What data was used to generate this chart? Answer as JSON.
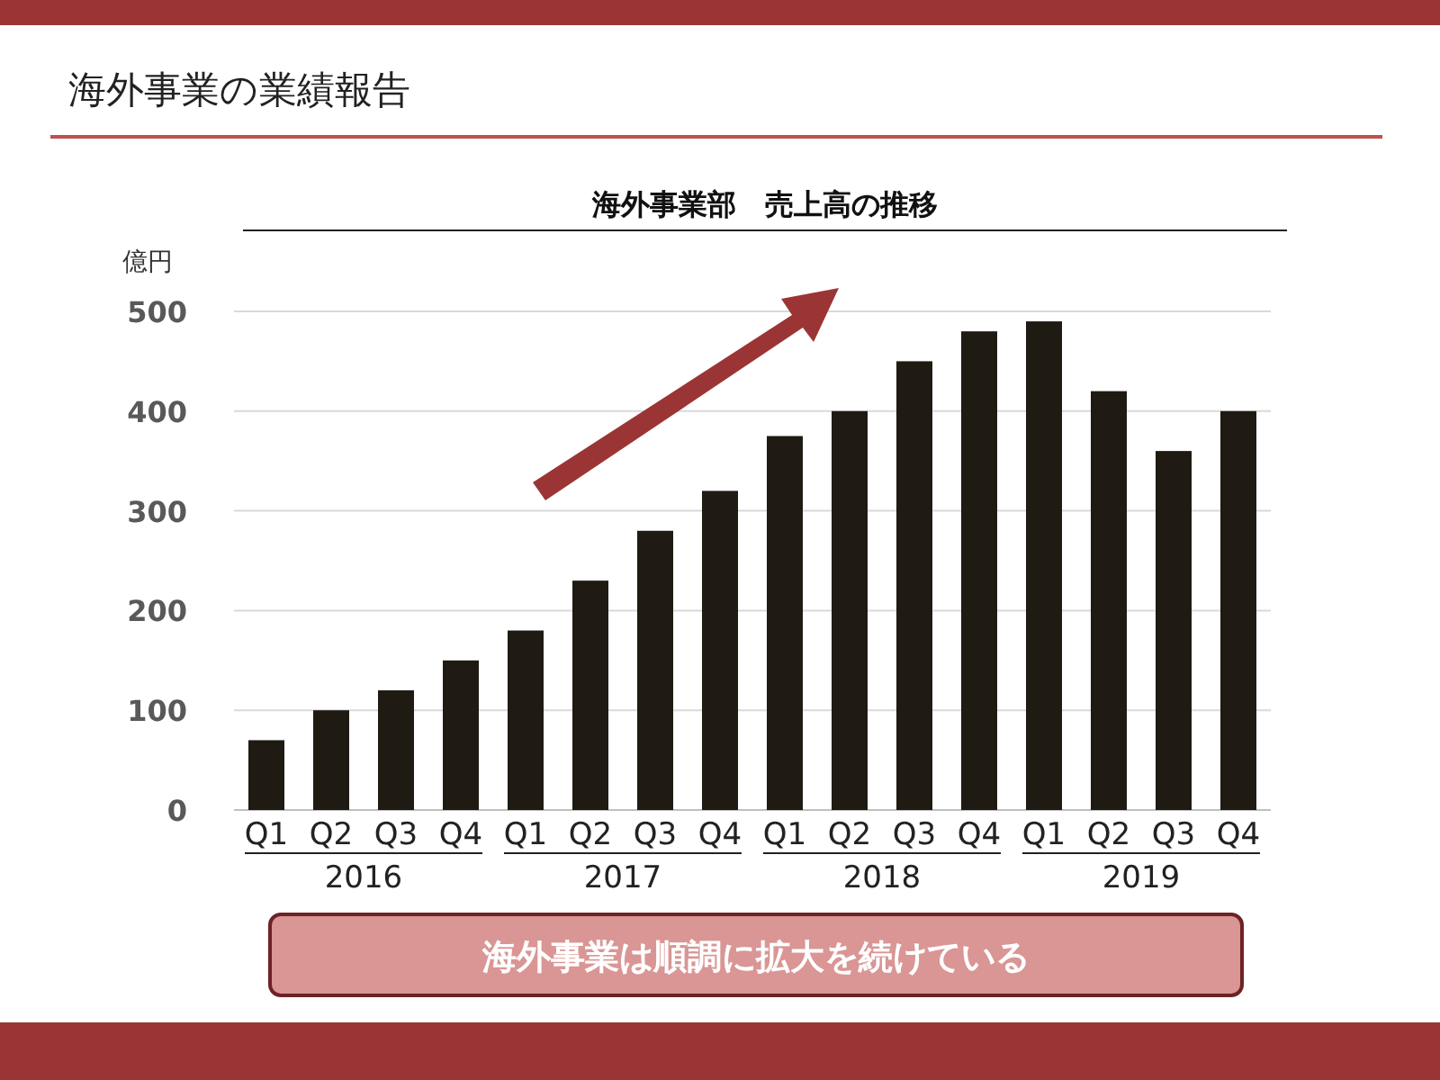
{
  "chart_data": {
    "type": "bar",
    "title": "海外事業部　売上高の推移",
    "ylabel": "億円",
    "categories": [
      "Q1",
      "Q2",
      "Q3",
      "Q4",
      "Q1",
      "Q2",
      "Q3",
      "Q4",
      "Q1",
      "Q2",
      "Q3",
      "Q4",
      "Q1",
      "Q2",
      "Q3",
      "Q4"
    ],
    "values": [
      70,
      100,
      120,
      150,
      180,
      230,
      280,
      320,
      375,
      400,
      450,
      480,
      490,
      420,
      360,
      400
    ],
    "color": "#1f1b13",
    "ylim": [
      0,
      500
    ],
    "yticks": [
      0,
      100,
      200,
      300,
      400,
      500
    ],
    "grid": "y",
    "annotations": [
      "海外事業の業績報告",
      "2016",
      "2017",
      "2018",
      "2019",
      "海外事業は順調に拡大を続けている"
    ]
  }
}
